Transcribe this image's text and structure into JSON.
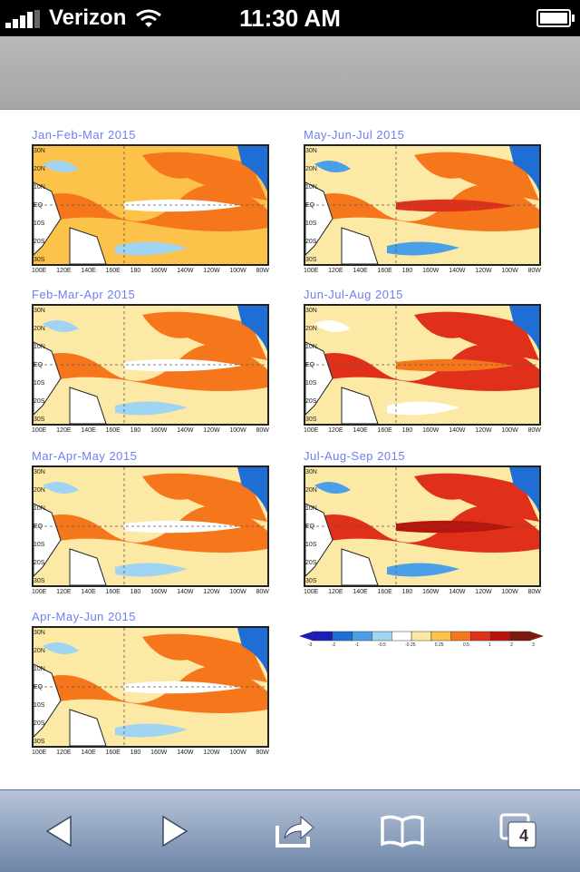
{
  "status": {
    "carrier": "Verizon",
    "time": "11:30 AM"
  },
  "panels": [
    {
      "title": "Jan-Feb-Mar 2015"
    },
    {
      "title": "May-Jun-Jul 2015"
    },
    {
      "title": "Feb-Mar-Apr 2015"
    },
    {
      "title": "Jun-Jul-Aug 2015"
    },
    {
      "title": "Mar-Apr-May 2015"
    },
    {
      "title": "Jul-Aug-Sep 2015"
    },
    {
      "title": "Apr-May-Jun 2015"
    }
  ],
  "lat_labels": [
    "30N",
    "20N",
    "10N",
    "EQ",
    "10S",
    "20S",
    "30S"
  ],
  "lon_labels": [
    "100E",
    "120E",
    "140E",
    "160E",
    "180",
    "160W",
    "140W",
    "120W",
    "100W",
    "80W"
  ],
  "colorbar": {
    "labels": [
      "-3",
      "-2",
      "-1",
      "-0.5",
      "-0.25",
      "0.25",
      "0.5",
      "1",
      "2",
      "3"
    ],
    "colors": [
      "#1c1cb8",
      "#1e6ed6",
      "#4aa0e8",
      "#9fd4f2",
      "#ffffff",
      "#fde9a6",
      "#fdc24a",
      "#f6761c",
      "#e0301a",
      "#b8140e",
      "#7a1a10"
    ]
  },
  "toolbar": {
    "tabs_count": "4",
    "icons": [
      "back-arrow-icon",
      "forward-arrow-icon",
      "share-icon",
      "bookmarks-icon",
      "tabs-icon"
    ]
  }
}
